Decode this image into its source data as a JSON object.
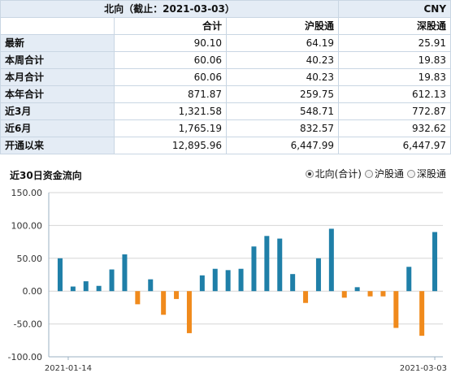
{
  "header": {
    "title": "北向（截止：2021-03-03）",
    "currency": "CNY"
  },
  "columns": [
    "合计",
    "沪股通",
    "深股通"
  ],
  "rows": [
    {
      "label": "最新",
      "values": [
        "90.10",
        "64.19",
        "25.91"
      ]
    },
    {
      "label": "本周合计",
      "values": [
        "60.06",
        "40.23",
        "19.83"
      ]
    },
    {
      "label": "本月合计",
      "values": [
        "60.06",
        "40.23",
        "19.83"
      ]
    },
    {
      "label": "本年合计",
      "values": [
        "871.87",
        "259.75",
        "612.13"
      ]
    },
    {
      "label": "近3月",
      "values": [
        "1,321.58",
        "548.71",
        "772.87"
      ]
    },
    {
      "label": "近6月",
      "values": [
        "1,765.19",
        "832.57",
        "932.62"
      ]
    },
    {
      "label": "开通以来",
      "values": [
        "12,895.96",
        "6,447.99",
        "6,447.97"
      ]
    }
  ],
  "chart_section": {
    "title": "近30日资金流向",
    "legend": [
      {
        "label": "北向(合计)",
        "selected": true
      },
      {
        "label": "沪股通",
        "selected": false
      },
      {
        "label": "深股通",
        "selected": false
      }
    ]
  },
  "colors": {
    "positive": "#1f7fa8",
    "negative": "#f08a1c",
    "grid": "#d6d6d6",
    "axis": "#9bb0c3"
  },
  "chart_data": {
    "type": "bar",
    "title": "",
    "xlabel": "",
    "ylabel": "",
    "ylim": [
      -100,
      150
    ],
    "yticks": [
      150,
      100,
      50,
      0,
      -50,
      -100
    ],
    "ytick_labels": [
      "150.00",
      "100.00",
      "50.00",
      "0.00",
      "-50.00",
      "-100.00"
    ],
    "x_start_label": "2021-01-14",
    "x_end_label": "2021-03-03",
    "series": [
      {
        "name": "北向(合计)",
        "values": [
          50,
          7,
          15,
          8,
          33,
          56,
          -20,
          18,
          -36,
          -12,
          -64,
          24,
          34,
          32,
          34,
          68,
          84,
          80,
          26,
          -18,
          50,
          95,
          -10,
          6,
          -8,
          -8,
          -56,
          37,
          -68,
          90
        ]
      }
    ]
  }
}
